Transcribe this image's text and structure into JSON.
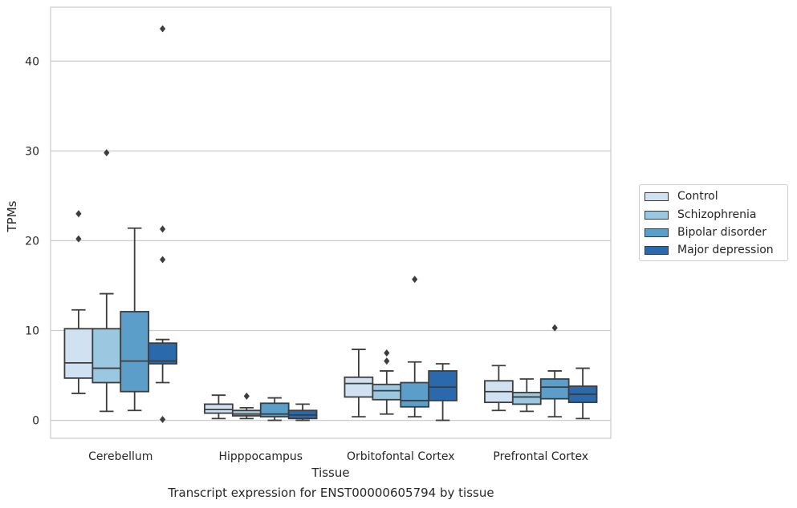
{
  "chart_data": {
    "type": "box",
    "title": "",
    "xlabel": "Tissue",
    "ylabel": "TPMs",
    "ylim": [
      -2,
      46
    ],
    "yticks": [
      0,
      10,
      20,
      30,
      40
    ],
    "grid": "horizontal",
    "legend_placement": "right, outside plot",
    "categories": [
      "Cerebellum",
      "Hipppocampus",
      "Orbitofontal Cortex",
      "Prefrontal Cortex"
    ],
    "series": [
      {
        "name": "Control",
        "color": "#d0e1f2",
        "boxes": [
          {
            "whisker_low": 3.0,
            "q1": 4.7,
            "median": 6.4,
            "q3": 10.2,
            "whisker_high": 12.3,
            "outliers": [
              20.2,
              23.0
            ]
          },
          {
            "whisker_low": 0.2,
            "q1": 0.8,
            "median": 1.2,
            "q3": 1.8,
            "whisker_high": 2.8,
            "outliers": []
          },
          {
            "whisker_low": 0.4,
            "q1": 2.6,
            "median": 4.1,
            "q3": 4.8,
            "whisker_high": 7.9,
            "outliers": []
          },
          {
            "whisker_low": 1.1,
            "q1": 2.0,
            "median": 3.2,
            "q3": 4.4,
            "whisker_high": 6.1,
            "outliers": []
          }
        ]
      },
      {
        "name": "Schizophrenia",
        "color": "#9ac8e0",
        "boxes": [
          {
            "whisker_low": 1.0,
            "q1": 4.2,
            "median": 5.8,
            "q3": 10.2,
            "whisker_high": 14.1,
            "outliers": [
              29.8
            ]
          },
          {
            "whisker_low": 0.2,
            "q1": 0.5,
            "median": 0.7,
            "q3": 1.1,
            "whisker_high": 1.4,
            "outliers": [
              2.7
            ]
          },
          {
            "whisker_low": 0.7,
            "q1": 2.3,
            "median": 3.3,
            "q3": 4.0,
            "whisker_high": 5.5,
            "outliers": [
              6.6,
              7.5
            ]
          },
          {
            "whisker_low": 1.0,
            "q1": 1.8,
            "median": 2.6,
            "q3": 3.1,
            "whisker_high": 4.6,
            "outliers": []
          }
        ]
      },
      {
        "name": "Bipolar disorder",
        "color": "#5a9ec9",
        "boxes": [
          {
            "whisker_low": 1.1,
            "q1": 3.2,
            "median": 6.6,
            "q3": 12.1,
            "whisker_high": 21.4,
            "outliers": []
          },
          {
            "whisker_low": 0.0,
            "q1": 0.4,
            "median": 0.7,
            "q3": 1.9,
            "whisker_high": 2.5,
            "outliers": []
          },
          {
            "whisker_low": 0.4,
            "q1": 1.5,
            "median": 2.2,
            "q3": 4.2,
            "whisker_high": 6.5,
            "outliers": [
              15.7
            ]
          },
          {
            "whisker_low": 0.4,
            "q1": 2.4,
            "median": 3.7,
            "q3": 4.6,
            "whisker_high": 5.5,
            "outliers": [
              10.3
            ]
          }
        ]
      },
      {
        "name": "Major depression",
        "color": "#2a6aac",
        "boxes": [
          {
            "whisker_low": 4.2,
            "q1": 6.3,
            "median": 6.6,
            "q3": 8.6,
            "whisker_high": 9.0,
            "outliers": [
              0.1,
              17.9,
              21.3,
              43.6
            ]
          },
          {
            "whisker_low": 0.0,
            "q1": 0.2,
            "median": 0.6,
            "q3": 1.1,
            "whisker_high": 1.8,
            "outliers": []
          },
          {
            "whisker_low": 0.0,
            "q1": 2.2,
            "median": 3.7,
            "q3": 5.5,
            "whisker_high": 6.3,
            "outliers": []
          },
          {
            "whisker_low": 0.2,
            "q1": 2.0,
            "median": 2.9,
            "q3": 3.8,
            "whisker_high": 5.8,
            "outliers": []
          }
        ]
      }
    ],
    "caption": "Transcript expression for ENST00000605794 by tissue"
  }
}
